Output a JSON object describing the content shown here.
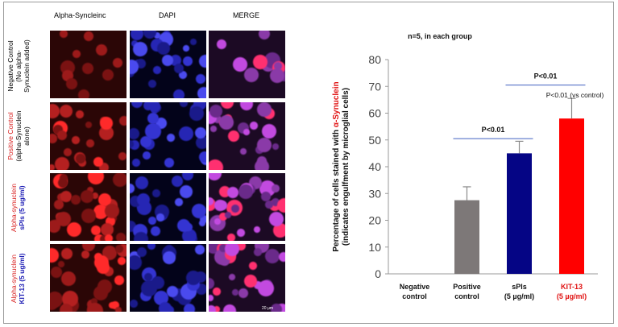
{
  "panel": {
    "columns": [
      {
        "label": "Alpha-Syncleinc",
        "color": "#d81c1c"
      },
      {
        "label": "DAPI",
        "color": "#2424c8"
      },
      {
        "label": "MERGE",
        "color": "#111111"
      }
    ],
    "rows": [
      {
        "line1": "Negative Control",
        "line2": "(No alpha-",
        "line3": "Synuclein added)",
        "color1": "#111111",
        "color2": "#111111"
      },
      {
        "line1": "Positive Control",
        "line2": "(alpha-Synuclein",
        "line3": "alone)",
        "color1": "#d81c1c",
        "color2": "#111111"
      },
      {
        "line1": "Alpha-synuclein",
        "line2": "sPIs (5 ug/ml)",
        "line3": "",
        "color1": "#d81c1c",
        "color2": "#1c1cb4"
      },
      {
        "line1": "Alpha-synuclein",
        "line2": "KIT-13 (5 ug/ml)",
        "line3": "",
        "color1": "#d81c1c",
        "color2": "#1c1cb4"
      }
    ],
    "scale_label": "20 µm"
  },
  "chart_data": {
    "type": "bar",
    "title": "n=5, in each group",
    "ylabel_line1_prefix": "Percentage of cells stained with ",
    "ylabel_line1_highlight": "α-Synuclein",
    "ylabel_line2": "(indicates engulfment by microglial cells)",
    "ylim": [
      0,
      80
    ],
    "yticks": [
      0,
      10,
      20,
      30,
      40,
      50,
      60,
      70,
      80
    ],
    "categories": [
      {
        "line1": "Negative",
        "line2": "control",
        "color": "#111111"
      },
      {
        "line1": "Positive",
        "line2": "control",
        "color": "#111111"
      },
      {
        "line1": "sPls",
        "line2": "(5 µg/ml)",
        "color": "#111111"
      },
      {
        "line1": "KIT-13",
        "line2": "(5 µg/ml)",
        "color": "#e01010"
      }
    ],
    "values": [
      0,
      27.5,
      45,
      58
    ],
    "errors": [
      0,
      5,
      4.5,
      7.5
    ],
    "bar_colors": [
      "#ffffff",
      "#7d7878",
      "#050585",
      "#ff0000"
    ],
    "annotations": [
      {
        "text": "P<0.01",
        "from": 1,
        "to": 2,
        "y": 50.5,
        "kind": "bracket"
      },
      {
        "text": "P<0.01",
        "from": 2,
        "to": 3,
        "y": 70.5,
        "kind": "bracket"
      },
      {
        "text": "P<0.01 (vs control)",
        "at": 3,
        "y": 67,
        "kind": "label"
      }
    ],
    "grid": false,
    "legend": "none"
  }
}
